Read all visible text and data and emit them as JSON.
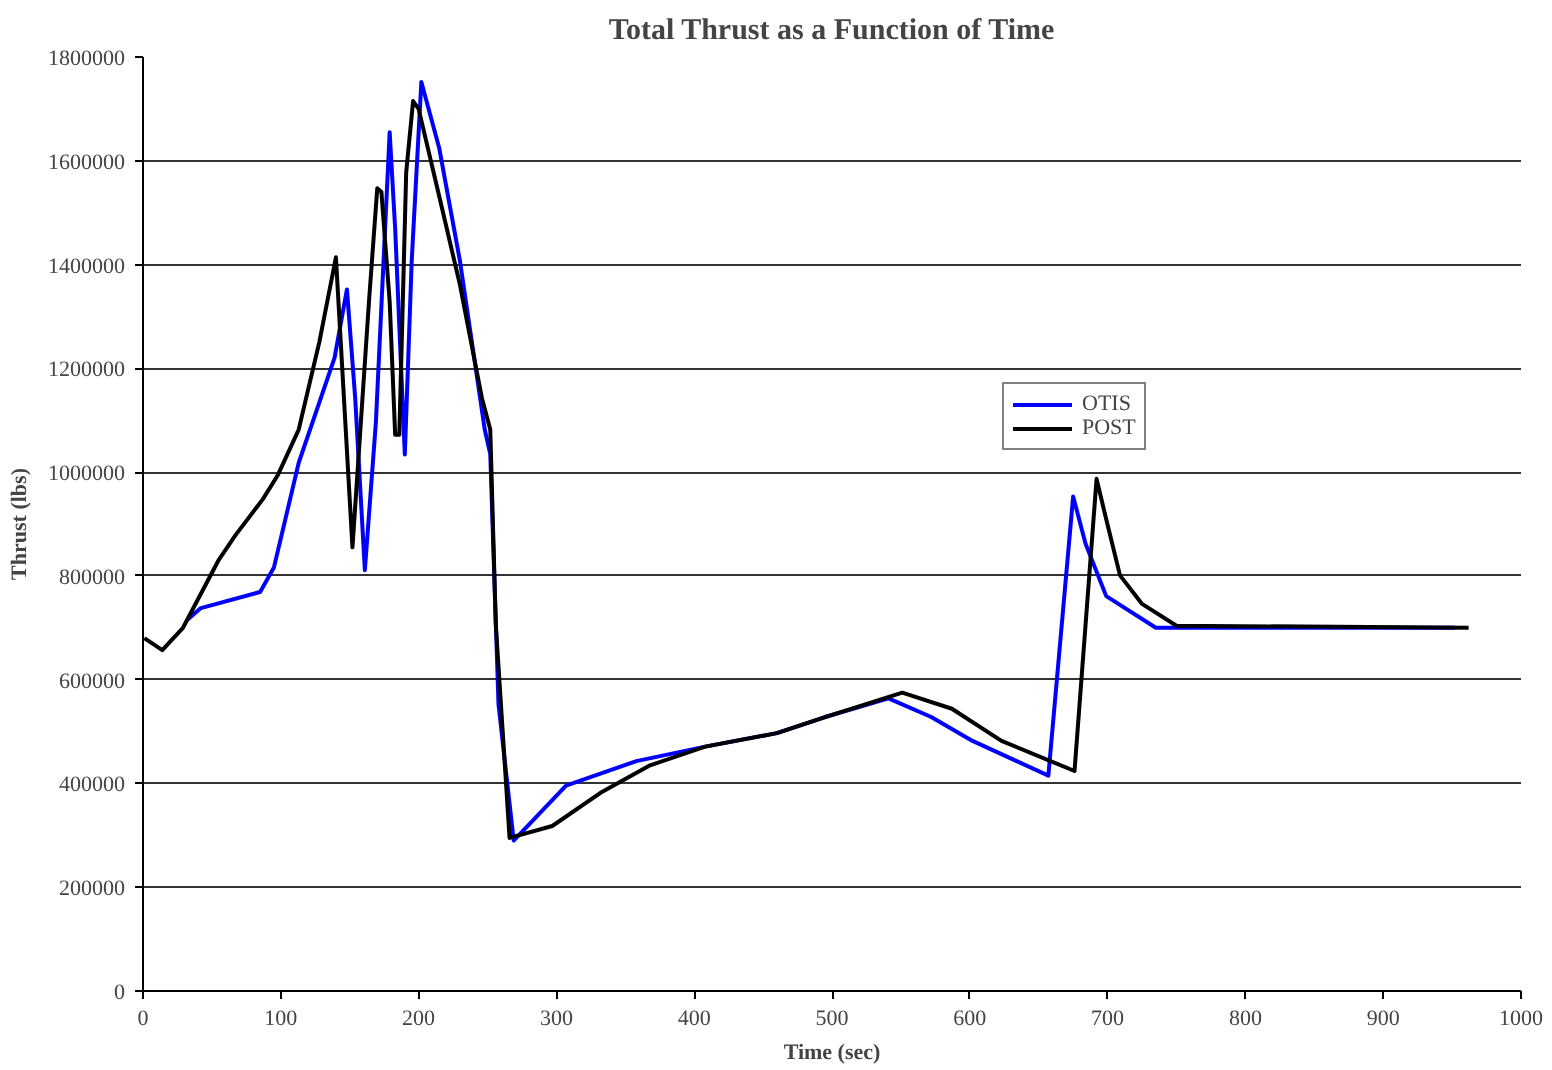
{
  "chart_data": {
    "type": "line",
    "title": "Total Thrust as a Function of Time",
    "xlabel": "Time (sec)",
    "ylabel": "Thrust (lbs)",
    "xlim": [
      0,
      1000
    ],
    "xticks": [
      0,
      100,
      200,
      300,
      400,
      500,
      600,
      700,
      800,
      900,
      1000
    ],
    "ylim": [
      0,
      1800000
    ],
    "yticks": [
      0,
      200000,
      400000,
      600000,
      800000,
      1000000,
      1200000,
      1400000,
      1600000,
      1800000
    ],
    "grid": "y",
    "legend": "top right",
    "marker": "none",
    "line_style": "solid",
    "series": [
      {
        "name": "OTIS",
        "color": "#0000ff",
        "x": [
          32,
          42,
          85,
          95,
          113,
          139,
          148,
          154,
          161,
          169,
          179,
          183,
          190,
          195,
          202,
          215,
          230,
          248,
          252,
          258,
          269,
          307,
          358,
          408,
          460,
          495,
          541,
          572,
          602,
          657,
          675,
          684,
          699,
          735,
          952
        ],
        "values": [
          715000,
          738000,
          769000,
          816000,
          1018000,
          1220000,
          1352000,
          1142000,
          811000,
          1096000,
          1655000,
          1469000,
          1034000,
          1407000,
          1752000,
          1624000,
          1407000,
          1082000,
          1035000,
          552000,
          290000,
          396000,
          443000,
          471000,
          497000,
          528000,
          564000,
          528000,
          482000,
          415000,
          953000,
          862000,
          761000,
          700000,
          700000
        ]
      },
      {
        "name": "POST",
        "color": "#000000",
        "x": [
          1,
          14,
          29,
          55,
          67,
          87,
          98,
          113,
          128,
          140,
          152,
          164,
          170,
          173,
          179,
          183,
          186,
          191,
          196,
          200,
          215,
          230,
          246,
          252,
          256,
          266,
          297,
          332,
          368,
          408,
          460,
          495,
          551,
          587,
          623,
          676,
          692,
          699,
          709,
          725,
          750,
          962
        ],
        "values": [
          680000,
          657000,
          700000,
          831000,
          878000,
          948000,
          995000,
          1082000,
          1251000,
          1414000,
          855000,
          1329000,
          1547000,
          1540000,
          1329000,
          1072000,
          1072000,
          1578000,
          1715000,
          1700000,
          1531000,
          1361000,
          1142000,
          1082000,
          707000,
          295000,
          318000,
          382000,
          435000,
          471000,
          497000,
          528000,
          575000,
          544000,
          482000,
          424000,
          987000,
          909000,
          801000,
          746000,
          704000,
          700000
        ]
      }
    ]
  }
}
